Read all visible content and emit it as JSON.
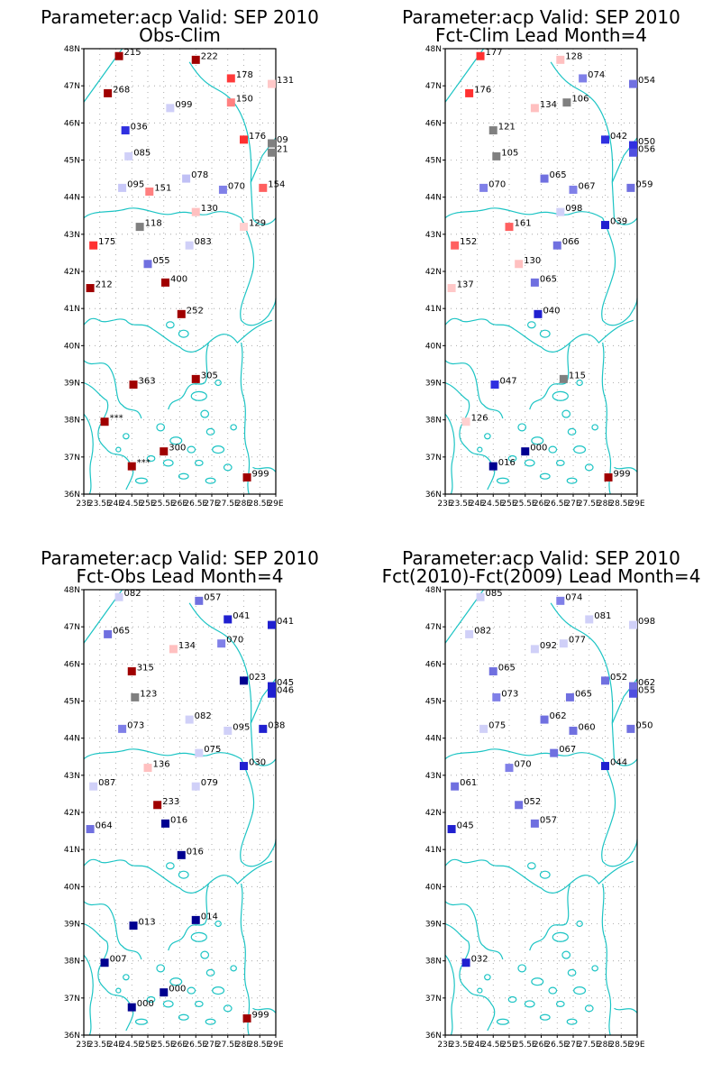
{
  "panels": [
    {
      "title": "Parameter:acp Valid: SEP 2010",
      "subtitle": "Obs-Clim",
      "lat_ticks": [
        "48N",
        "47N",
        "46N",
        "45N",
        "44N",
        "43N",
        "42N",
        "41N",
        "40N",
        "39N",
        "38N",
        "37N",
        "36N"
      ],
      "lon_ticks": [
        "23E",
        "23.5E",
        "24E",
        "24.5E",
        "25E",
        "25.5E",
        "26E",
        "26.5E",
        "27E",
        "27.5E",
        "28E",
        "28.5E",
        "29E"
      ],
      "stations": [
        {
          "lon": 24.1,
          "lat": 47.8,
          "label": "215",
          "color": "#a00000"
        },
        {
          "lon": 26.5,
          "lat": 47.7,
          "label": "222",
          "color": "#a00000"
        },
        {
          "lon": 27.6,
          "lat": 47.2,
          "label": "178",
          "color": "#ff3a3a"
        },
        {
          "lon": 29.0,
          "lat": 47.05,
          "label": "131",
          "color": "#ffc8c8"
        },
        {
          "lon": 23.75,
          "lat": 46.8,
          "label": "268",
          "color": "#a00000"
        },
        {
          "lon": 27.6,
          "lat": 46.55,
          "label": "150",
          "color": "#ff8080"
        },
        {
          "lon": 25.7,
          "lat": 46.4,
          "label": "099",
          "color": "#cfcff8"
        },
        {
          "lon": 24.3,
          "lat": 45.8,
          "label": "036",
          "color": "#3030e0"
        },
        {
          "lon": 28.0,
          "lat": 45.55,
          "label": "176",
          "color": "#ff3030"
        },
        {
          "lon": 29.0,
          "lat": 45.45,
          "label": "09",
          "color": "#808080"
        },
        {
          "lon": 29.0,
          "lat": 45.2,
          "label": "21",
          "color": "#808080"
        },
        {
          "lon": 24.4,
          "lat": 45.1,
          "label": "085",
          "color": "#d0d0f8"
        },
        {
          "lon": 26.2,
          "lat": 44.5,
          "label": "078",
          "color": "#c0c0f5"
        },
        {
          "lon": 24.2,
          "lat": 44.25,
          "label": "095",
          "color": "#c8c8f8"
        },
        {
          "lon": 25.05,
          "lat": 44.15,
          "label": "151",
          "color": "#ff8080"
        },
        {
          "lon": 27.35,
          "lat": 44.2,
          "label": "070",
          "color": "#8080e8"
        },
        {
          "lon": 28.6,
          "lat": 44.25,
          "label": "154",
          "color": "#ff6060"
        },
        {
          "lon": 26.5,
          "lat": 43.6,
          "label": "130",
          "color": "#ffc0c0"
        },
        {
          "lon": 24.75,
          "lat": 43.2,
          "label": "118",
          "color": "#808080"
        },
        {
          "lon": 28.0,
          "lat": 43.2,
          "label": "129",
          "color": "#ffd0d0"
        },
        {
          "lon": 23.3,
          "lat": 42.7,
          "label": "175",
          "color": "#ff3030"
        },
        {
          "lon": 26.3,
          "lat": 42.7,
          "label": "083",
          "color": "#d0d0f8"
        },
        {
          "lon": 25.0,
          "lat": 42.2,
          "label": "055",
          "color": "#7070e0"
        },
        {
          "lon": 25.55,
          "lat": 41.7,
          "label": "400",
          "color": "#a00000"
        },
        {
          "lon": 23.2,
          "lat": 41.55,
          "label": "212",
          "color": "#a00000"
        },
        {
          "lon": 26.05,
          "lat": 40.85,
          "label": "252",
          "color": "#a00000"
        },
        {
          "lon": 26.5,
          "lat": 39.1,
          "label": "305",
          "color": "#a00000"
        },
        {
          "lon": 24.55,
          "lat": 38.95,
          "label": "363",
          "color": "#a00000"
        },
        {
          "lon": 23.65,
          "lat": 37.95,
          "label": "***",
          "color": "#a00000"
        },
        {
          "lon": 25.5,
          "lat": 37.15,
          "label": "300",
          "color": "#a00000"
        },
        {
          "lon": 24.5,
          "lat": 36.75,
          "label": "***",
          "color": "#a00000"
        },
        {
          "lon": 28.1,
          "lat": 36.45,
          "label": "999",
          "color": "#a00000"
        }
      ]
    },
    {
      "title": "Parameter:acp Valid: SEP 2010",
      "subtitle": "Fct-Clim Lead Month=4",
      "lat_ticks": [
        "48N",
        "47N",
        "46N",
        "45N",
        "44N",
        "43N",
        "42N",
        "41N",
        "40N",
        "39N",
        "38N",
        "37N",
        "36N"
      ],
      "lon_ticks": [
        "23E",
        "23.5E",
        "24E",
        "24.5E",
        "25E",
        "25.5E",
        "26E",
        "26.5E",
        "27E",
        "27.5E",
        "28E",
        "28.5E",
        "29E"
      ],
      "stations": [
        {
          "lon": 24.1,
          "lat": 47.8,
          "label": "177",
          "color": "#ff3030"
        },
        {
          "lon": 26.6,
          "lat": 47.7,
          "label": "128",
          "color": "#ffc0c0"
        },
        {
          "lon": 27.3,
          "lat": 47.2,
          "label": "074",
          "color": "#8080e8"
        },
        {
          "lon": 29.0,
          "lat": 47.05,
          "label": "054",
          "color": "#7070e0"
        },
        {
          "lon": 23.75,
          "lat": 46.8,
          "label": "176",
          "color": "#ff3030"
        },
        {
          "lon": 25.8,
          "lat": 46.4,
          "label": "134",
          "color": "#ffc0c0"
        },
        {
          "lon": 26.8,
          "lat": 46.55,
          "label": "106",
          "color": "#808080"
        },
        {
          "lon": 24.5,
          "lat": 45.8,
          "label": "121",
          "color": "#808080"
        },
        {
          "lon": 28.0,
          "lat": 45.55,
          "label": "042",
          "color": "#3030e0"
        },
        {
          "lon": 29.0,
          "lat": 45.4,
          "label": "050",
          "color": "#3030e0"
        },
        {
          "lon": 29.0,
          "lat": 45.2,
          "label": "056",
          "color": "#5050e0"
        },
        {
          "lon": 24.6,
          "lat": 45.1,
          "label": "105",
          "color": "#808080"
        },
        {
          "lon": 26.1,
          "lat": 44.5,
          "label": "065",
          "color": "#7070e0"
        },
        {
          "lon": 24.2,
          "lat": 44.25,
          "label": "070",
          "color": "#8080e8"
        },
        {
          "lon": 27.0,
          "lat": 44.2,
          "label": "067",
          "color": "#8080e8"
        },
        {
          "lon": 28.8,
          "lat": 44.25,
          "label": "059",
          "color": "#7070e0"
        },
        {
          "lon": 26.6,
          "lat": 43.6,
          "label": "098",
          "color": "#d0d0f8"
        },
        {
          "lon": 25.0,
          "lat": 43.2,
          "label": "161",
          "color": "#ff6060"
        },
        {
          "lon": 28.0,
          "lat": 43.25,
          "label": "039",
          "color": "#2020d0"
        },
        {
          "lon": 23.3,
          "lat": 42.7,
          "label": "152",
          "color": "#ff6060"
        },
        {
          "lon": 26.5,
          "lat": 42.7,
          "label": "066",
          "color": "#7070e0"
        },
        {
          "lon": 25.3,
          "lat": 42.2,
          "label": "130",
          "color": "#ffc0c0"
        },
        {
          "lon": 25.8,
          "lat": 41.7,
          "label": "065",
          "color": "#7070e0"
        },
        {
          "lon": 23.2,
          "lat": 41.55,
          "label": "137",
          "color": "#ffc8c8"
        },
        {
          "lon": 25.9,
          "lat": 40.85,
          "label": "040",
          "color": "#2020d0"
        },
        {
          "lon": 26.7,
          "lat": 39.1,
          "label": "115",
          "color": "#808080"
        },
        {
          "lon": 24.55,
          "lat": 38.95,
          "label": "047",
          "color": "#3030e0"
        },
        {
          "lon": 23.65,
          "lat": 37.95,
          "label": "126",
          "color": "#ffd0d0"
        },
        {
          "lon": 25.5,
          "lat": 37.15,
          "label": "000",
          "color": "#000090"
        },
        {
          "lon": 24.5,
          "lat": 36.75,
          "label": "016",
          "color": "#000090"
        },
        {
          "lon": 28.1,
          "lat": 36.45,
          "label": "999",
          "color": "#a00000"
        }
      ]
    },
    {
      "title": "Parameter:acp Valid: SEP 2010",
      "subtitle": "Fct-Obs Lead Month=4",
      "lat_ticks": [
        "48N",
        "47N",
        "46N",
        "45N",
        "44N",
        "43N",
        "42N",
        "41N",
        "40N",
        "39N",
        "38N",
        "37N",
        "36N"
      ],
      "lon_ticks": [
        "23E",
        "23.5E",
        "24E",
        "24.5E",
        "25E",
        "25.5E",
        "26E",
        "26.5E",
        "27E",
        "27.5E",
        "28E",
        "28.5E",
        "29E"
      ],
      "stations": [
        {
          "lon": 24.1,
          "lat": 47.8,
          "label": "082",
          "color": "#d0d0f8"
        },
        {
          "lon": 26.6,
          "lat": 47.7,
          "label": "057",
          "color": "#7070e0"
        },
        {
          "lon": 27.5,
          "lat": 47.2,
          "label": "041",
          "color": "#2020d0"
        },
        {
          "lon": 29.0,
          "lat": 47.05,
          "label": "041",
          "color": "#2020d0"
        },
        {
          "lon": 23.75,
          "lat": 46.8,
          "label": "065",
          "color": "#7070e0"
        },
        {
          "lon": 25.8,
          "lat": 46.4,
          "label": "134",
          "color": "#ffc0c0"
        },
        {
          "lon": 27.3,
          "lat": 46.55,
          "label": "070",
          "color": "#8080e8"
        },
        {
          "lon": 24.5,
          "lat": 45.8,
          "label": "315",
          "color": "#a00000"
        },
        {
          "lon": 28.0,
          "lat": 45.55,
          "label": "023",
          "color": "#000090"
        },
        {
          "lon": 29.0,
          "lat": 45.4,
          "label": "045",
          "color": "#2020d0"
        },
        {
          "lon": 29.0,
          "lat": 45.2,
          "label": "046",
          "color": "#2020d0"
        },
        {
          "lon": 24.6,
          "lat": 45.1,
          "label": "123",
          "color": "#808080"
        },
        {
          "lon": 26.3,
          "lat": 44.5,
          "label": "082",
          "color": "#d0d0f8"
        },
        {
          "lon": 24.2,
          "lat": 44.25,
          "label": "073",
          "color": "#8080e8"
        },
        {
          "lon": 27.5,
          "lat": 44.2,
          "label": "095",
          "color": "#d0d0f8"
        },
        {
          "lon": 28.6,
          "lat": 44.25,
          "label": "038",
          "color": "#2020d0"
        },
        {
          "lon": 26.6,
          "lat": 43.6,
          "label": "075",
          "color": "#d0d0f8"
        },
        {
          "lon": 25.0,
          "lat": 43.2,
          "label": "136",
          "color": "#ffc0c0"
        },
        {
          "lon": 28.0,
          "lat": 43.25,
          "label": "030",
          "color": "#2020d0"
        },
        {
          "lon": 23.3,
          "lat": 42.7,
          "label": "087",
          "color": "#d0d0f8"
        },
        {
          "lon": 26.5,
          "lat": 42.7,
          "label": "079",
          "color": "#d0d0f8"
        },
        {
          "lon": 25.3,
          "lat": 42.2,
          "label": "233",
          "color": "#a00000"
        },
        {
          "lon": 25.55,
          "lat": 41.7,
          "label": "016",
          "color": "#000090"
        },
        {
          "lon": 23.2,
          "lat": 41.55,
          "label": "064",
          "color": "#7070e0"
        },
        {
          "lon": 26.05,
          "lat": 40.85,
          "label": "016",
          "color": "#000090"
        },
        {
          "lon": 26.5,
          "lat": 39.1,
          "label": "014",
          "color": "#000090"
        },
        {
          "lon": 24.55,
          "lat": 38.95,
          "label": "013",
          "color": "#000090"
        },
        {
          "lon": 23.65,
          "lat": 37.95,
          "label": "007",
          "color": "#000090"
        },
        {
          "lon": 25.5,
          "lat": 37.15,
          "label": "000",
          "color": "#000090"
        },
        {
          "lon": 24.5,
          "lat": 36.75,
          "label": "000",
          "color": "#000090"
        },
        {
          "lon": 28.1,
          "lat": 36.45,
          "label": "999",
          "color": "#a00000"
        }
      ]
    },
    {
      "title": "Parameter:acp Valid: SEP 2010",
      "subtitle": "Fct(2010)-Fct(2009) Lead Month=4",
      "lat_ticks": [
        "48N",
        "47N",
        "46N",
        "45N",
        "44N",
        "43N",
        "42N",
        "41N",
        "40N",
        "39N",
        "38N",
        "37N",
        "36N"
      ],
      "lon_ticks": [
        "23E",
        "23.5E",
        "24E",
        "24.5E",
        "25E",
        "25.5E",
        "26E",
        "26.5E",
        "27E",
        "27.5E",
        "28E",
        "28.5E",
        "29E"
      ],
      "stations": [
        {
          "lon": 24.1,
          "lat": 47.8,
          "label": "085",
          "color": "#d0d0f8"
        },
        {
          "lon": 26.6,
          "lat": 47.7,
          "label": "074",
          "color": "#8080e8"
        },
        {
          "lon": 27.5,
          "lat": 47.2,
          "label": "081",
          "color": "#d0d0f8"
        },
        {
          "lon": 29.0,
          "lat": 47.05,
          "label": "098",
          "color": "#d0d0f8"
        },
        {
          "lon": 23.75,
          "lat": 46.8,
          "label": "082",
          "color": "#d0d0f8"
        },
        {
          "lon": 25.8,
          "lat": 46.4,
          "label": "092",
          "color": "#d0d0f8"
        },
        {
          "lon": 26.7,
          "lat": 46.55,
          "label": "077",
          "color": "#d0d0f8"
        },
        {
          "lon": 24.5,
          "lat": 45.8,
          "label": "065",
          "color": "#7070e0"
        },
        {
          "lon": 28.0,
          "lat": 45.55,
          "label": "052",
          "color": "#7070e0"
        },
        {
          "lon": 29.0,
          "lat": 45.4,
          "label": "062",
          "color": "#7070e0"
        },
        {
          "lon": 29.0,
          "lat": 45.2,
          "label": "055",
          "color": "#5050e0"
        },
        {
          "lon": 24.6,
          "lat": 45.1,
          "label": "073",
          "color": "#8080e8"
        },
        {
          "lon": 26.1,
          "lat": 44.5,
          "label": "062",
          "color": "#7070e0"
        },
        {
          "lon": 24.2,
          "lat": 44.25,
          "label": "075",
          "color": "#d0d0f8"
        },
        {
          "lon": 26.9,
          "lat": 45.1,
          "label": "065",
          "color": "#7070e0"
        },
        {
          "lon": 27.0,
          "lat": 44.2,
          "label": "060",
          "color": "#7070e0"
        },
        {
          "lon": 28.8,
          "lat": 44.25,
          "label": "050",
          "color": "#7070e0"
        },
        {
          "lon": 26.4,
          "lat": 43.6,
          "label": "067",
          "color": "#7070e0"
        },
        {
          "lon": 25.0,
          "lat": 43.2,
          "label": "070",
          "color": "#8080e8"
        },
        {
          "lon": 28.0,
          "lat": 43.25,
          "label": "044",
          "color": "#2020d0"
        },
        {
          "lon": 23.3,
          "lat": 42.7,
          "label": "061",
          "color": "#7070e0"
        },
        {
          "lon": 25.3,
          "lat": 42.2,
          "label": "052",
          "color": "#7070e0"
        },
        {
          "lon": 25.8,
          "lat": 41.7,
          "label": "057",
          "color": "#7070e0"
        },
        {
          "lon": 23.2,
          "lat": 41.55,
          "label": "045",
          "color": "#2020d0"
        },
        {
          "lon": 23.65,
          "lat": 37.95,
          "label": "032",
          "color": "#2020d0"
        }
      ]
    }
  ]
}
